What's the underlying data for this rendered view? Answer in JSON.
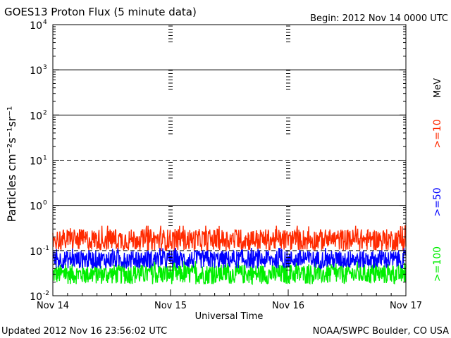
{
  "chart_data": {
    "type": "line",
    "title": "GOES13 Proton Flux (5 minute data)",
    "begin_label": "Begin: 2012 Nov 14 0000 UTC",
    "ylabel": "Particles cm⁻²s⁻¹sr⁻¹",
    "xlabel": "Universal Time",
    "y_scale": "log",
    "ylim": [
      0.01,
      10000
    ],
    "y_ticks": [
      {
        "base": "10",
        "exp": "4",
        "value": 10000
      },
      {
        "base": "10",
        "exp": "3",
        "value": 1000
      },
      {
        "base": "10",
        "exp": "2",
        "value": 100
      },
      {
        "base": "10",
        "exp": "1",
        "value": 10
      },
      {
        "base": "10",
        "exp": "0",
        "value": 1
      },
      {
        "base": "10",
        "exp": "-1",
        "value": 0.1
      },
      {
        "base": "10",
        "exp": "-2",
        "value": 0.01
      }
    ],
    "x_ticks": [
      "Nov 14",
      "Nov 15",
      "Nov 16",
      "Nov 17"
    ],
    "xlim": [
      "2012-11-14 00:00",
      "2012-11-17 00:00"
    ],
    "grid": {
      "solid_lines_at": [
        1000,
        100,
        1
      ],
      "dashed_lines_at": [
        10,
        0.1
      ]
    },
    "legend_unit": "MeV",
    "series": [
      {
        "name": ">=10",
        "color": "#ff2a00",
        "typical_min": 0.1,
        "typical_max": 0.3
      },
      {
        "name": ">=50",
        "color": "#0000ff",
        "typical_min": 0.04,
        "typical_max": 0.1
      },
      {
        "name": ">=100",
        "color": "#00ee00",
        "typical_min": 0.018,
        "typical_max": 0.05
      }
    ]
  },
  "footer": {
    "updated": "Updated 2012 Nov 16 23:56:02 UTC",
    "credit": "NOAA/SWPC Boulder, CO USA"
  }
}
